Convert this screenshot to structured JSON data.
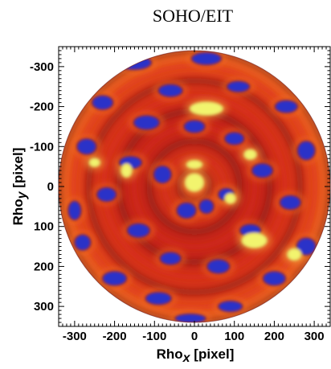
{
  "chart_data": {
    "type": "heatmap",
    "title": "SOHO/EIT",
    "xlabel": {
      "main": "Rho",
      "sub": "x",
      "unit": " [pixel]"
    },
    "ylabel": {
      "main": "Rho",
      "sub": "y",
      "unit": " [pixel]"
    },
    "xlim": [
      -340,
      340
    ],
    "ylim": [
      -350,
      350
    ],
    "y_inverted": true,
    "disk_radius": 340,
    "xticks": [
      -300,
      -200,
      -100,
      0,
      100,
      200,
      300
    ],
    "yticks": [
      -300,
      -200,
      -100,
      0,
      100,
      200,
      300
    ],
    "xtick_labels": [
      "-300",
      "-200",
      "-100",
      "0",
      "100",
      "200",
      "300"
    ],
    "ytick_labels": [
      "-300",
      "-200",
      "-100",
      "0",
      "100",
      "200",
      "300"
    ],
    "grid": false,
    "colormap": [
      "#2a33c8",
      "#6e1818",
      "#a81410",
      "#e03214",
      "#ee6a1e",
      "#f3a23a",
      "#e6d060",
      "#f2f46e"
    ],
    "features": [
      {
        "kind": "blue",
        "x": -150,
        "y": -310,
        "rx": 40,
        "ry": 16
      },
      {
        "kind": "blue",
        "x": 30,
        "y": -320,
        "rx": 35,
        "ry": 14
      },
      {
        "kind": "blue",
        "x": -60,
        "y": -240,
        "rx": 28,
        "ry": 14
      },
      {
        "kind": "blue",
        "x": 110,
        "y": -250,
        "rx": 26,
        "ry": 12
      },
      {
        "kind": "blue",
        "x": -230,
        "y": -210,
        "rx": 24,
        "ry": 16
      },
      {
        "kind": "blue",
        "x": 230,
        "y": -200,
        "rx": 26,
        "ry": 14
      },
      {
        "kind": "blue",
        "x": -120,
        "y": -160,
        "rx": 30,
        "ry": 16
      },
      {
        "kind": "blue",
        "x": 0,
        "y": -150,
        "rx": 24,
        "ry": 14
      },
      {
        "kind": "blue",
        "x": 100,
        "y": -120,
        "rx": 22,
        "ry": 14
      },
      {
        "kind": "blue",
        "x": -270,
        "y": -100,
        "rx": 22,
        "ry": 18
      },
      {
        "kind": "blue",
        "x": 280,
        "y": -90,
        "rx": 20,
        "ry": 22
      },
      {
        "kind": "blue",
        "x": -160,
        "y": -60,
        "rx": 26,
        "ry": 14
      },
      {
        "kind": "blue",
        "x": 170,
        "y": -40,
        "rx": 24,
        "ry": 16
      },
      {
        "kind": "blue",
        "x": -80,
        "y": -30,
        "rx": 20,
        "ry": 20
      },
      {
        "kind": "blue",
        "x": 80,
        "y": 20,
        "rx": 18,
        "ry": 14
      },
      {
        "kind": "blue",
        "x": -220,
        "y": 20,
        "rx": 22,
        "ry": 16
      },
      {
        "kind": "blue",
        "x": 240,
        "y": 40,
        "rx": 24,
        "ry": 16
      },
      {
        "kind": "blue",
        "x": -20,
        "y": 60,
        "rx": 22,
        "ry": 18
      },
      {
        "kind": "blue",
        "x": 30,
        "y": 50,
        "rx": 16,
        "ry": 16
      },
      {
        "kind": "blue",
        "x": -140,
        "y": 110,
        "rx": 26,
        "ry": 16
      },
      {
        "kind": "blue",
        "x": 140,
        "y": 110,
        "rx": 24,
        "ry": 14
      },
      {
        "kind": "blue",
        "x": -280,
        "y": 140,
        "rx": 18,
        "ry": 18
      },
      {
        "kind": "blue",
        "x": 280,
        "y": 150,
        "rx": 22,
        "ry": 20
      },
      {
        "kind": "blue",
        "x": -60,
        "y": 180,
        "rx": 24,
        "ry": 14
      },
      {
        "kind": "blue",
        "x": 60,
        "y": 200,
        "rx": 26,
        "ry": 16
      },
      {
        "kind": "blue",
        "x": -200,
        "y": 230,
        "rx": 28,
        "ry": 16
      },
      {
        "kind": "blue",
        "x": 200,
        "y": 230,
        "rx": 26,
        "ry": 16
      },
      {
        "kind": "blue",
        "x": -90,
        "y": 280,
        "rx": 30,
        "ry": 14
      },
      {
        "kind": "blue",
        "x": 90,
        "y": 300,
        "rx": 28,
        "ry": 12
      },
      {
        "kind": "blue",
        "x": 270,
        "y": 300,
        "rx": 55,
        "ry": 22
      },
      {
        "kind": "blue",
        "x": -10,
        "y": 330,
        "rx": 36,
        "ry": 10
      },
      {
        "kind": "blue",
        "x": -300,
        "y": 60,
        "rx": 14,
        "ry": 22
      },
      {
        "kind": "yellow",
        "x": 30,
        "y": -195,
        "rx": 38,
        "ry": 14
      },
      {
        "kind": "yellow",
        "x": 0,
        "y": -55,
        "rx": 16,
        "ry": 8
      },
      {
        "kind": "yellow",
        "x": 0,
        "y": -10,
        "rx": 20,
        "ry": 20
      },
      {
        "kind": "yellow",
        "x": 140,
        "y": -80,
        "rx": 12,
        "ry": 10
      },
      {
        "kind": "yellow",
        "x": -170,
        "y": -40,
        "rx": 10,
        "ry": 14
      },
      {
        "kind": "yellow",
        "x": 90,
        "y": 30,
        "rx": 10,
        "ry": 10
      },
      {
        "kind": "yellow",
        "x": 150,
        "y": 135,
        "rx": 28,
        "ry": 16
      },
      {
        "kind": "yellow",
        "x": 250,
        "y": 170,
        "rx": 14,
        "ry": 12
      },
      {
        "kind": "yellow",
        "x": -250,
        "y": -60,
        "rx": 10,
        "ry": 8
      }
    ]
  }
}
